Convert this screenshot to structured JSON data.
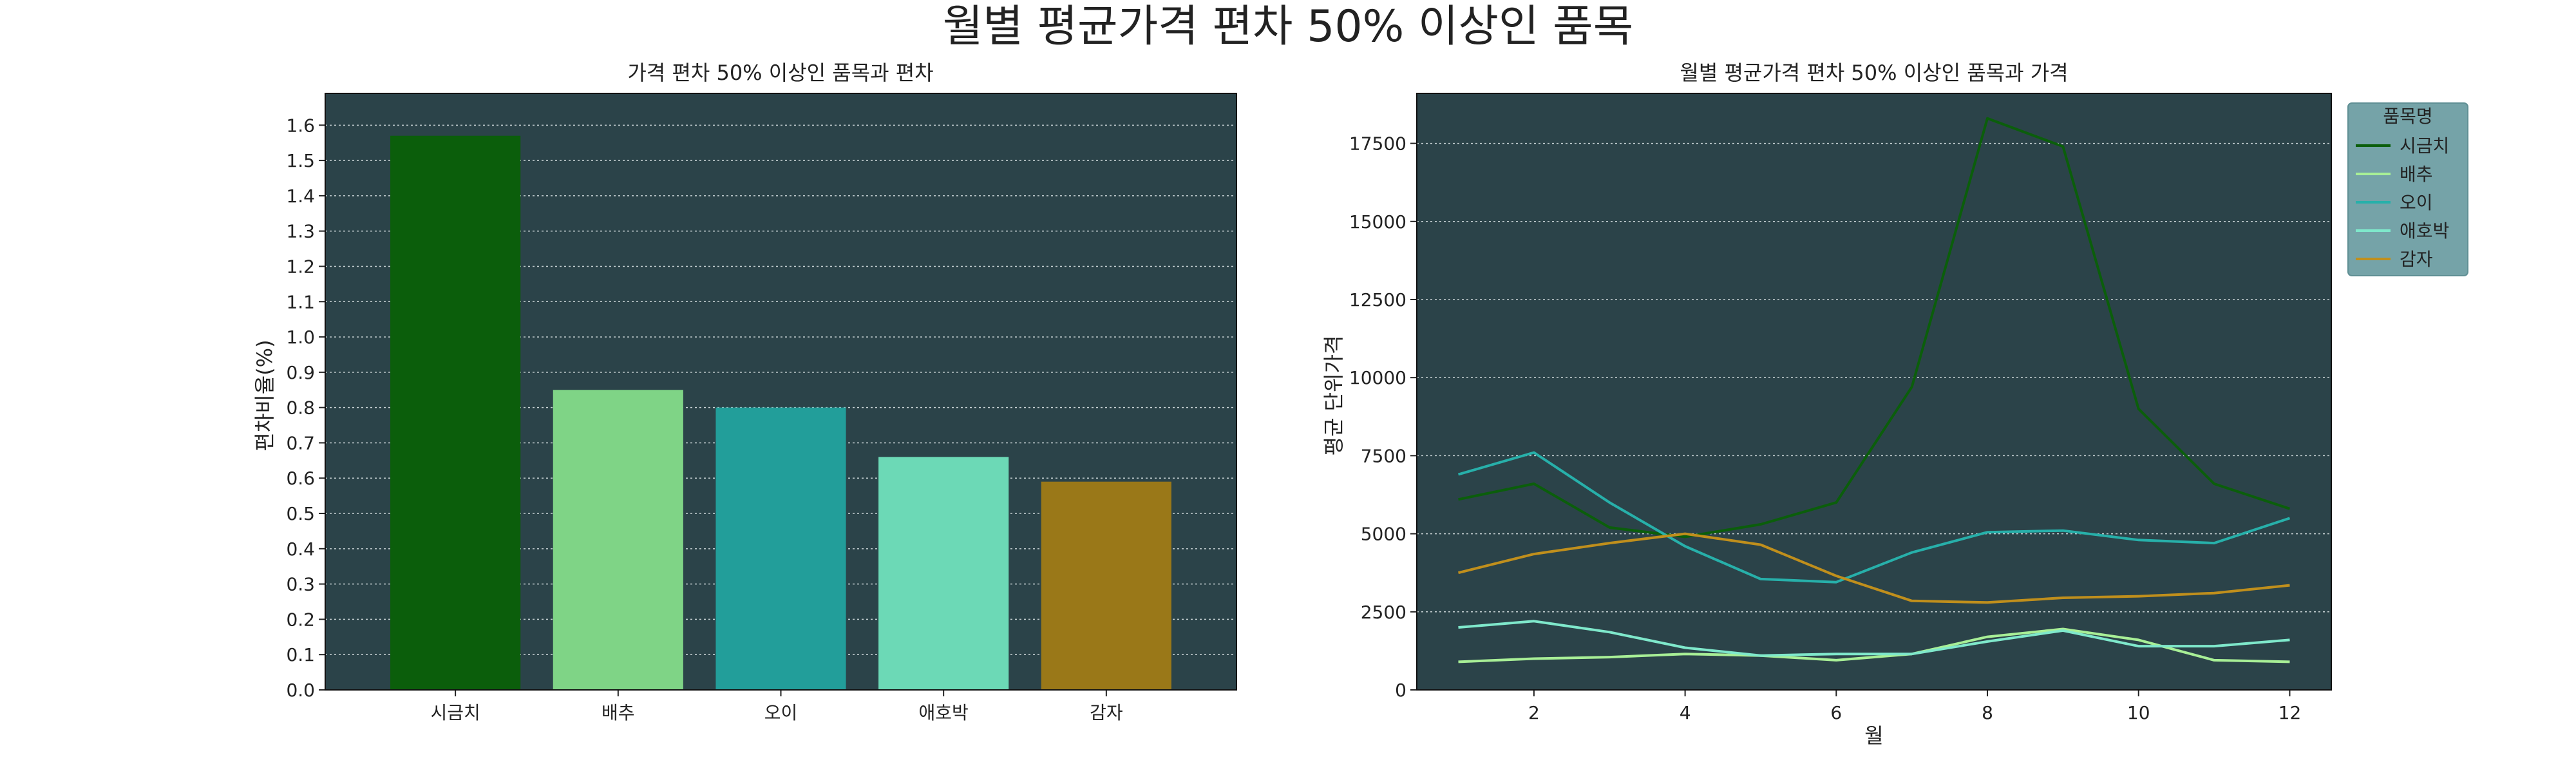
{
  "figure": {
    "suptitle": "월별 평균가격 편차 50% 이상인 품목"
  },
  "chart_data": [
    {
      "type": "bar",
      "title": "가격 편차 50% 이상인 품목과 편차",
      "xlabel": "",
      "ylabel": "편차비율(%)",
      "categories": [
        "시금치",
        "배추",
        "오이",
        "애호박",
        "감자"
      ],
      "values": [
        1.57,
        0.85,
        0.8,
        0.66,
        0.59
      ],
      "colors": [
        "#0b5e0b",
        "#7fd486",
        "#229e9a",
        "#6cd9b6",
        "#9a7818"
      ],
      "ylim": [
        0,
        1.69
      ],
      "yticks": [
        0,
        0.1,
        0.2,
        0.3,
        0.4,
        0.5,
        0.6,
        0.7,
        0.8,
        0.9,
        1.0,
        1.1,
        1.2,
        1.3,
        1.4,
        1.5,
        1.6
      ],
      "ytick_labels": [
        "0.0",
        "0.1",
        "0.2",
        "0.3",
        "0.4",
        "0.5",
        "0.6",
        "0.7",
        "0.8",
        "0.9",
        "1.0",
        "1.1",
        "1.2",
        "1.3",
        "1.4",
        "1.5",
        "1.6"
      ],
      "grid": "horizontal-dotted",
      "background": "#2b4349"
    },
    {
      "type": "line",
      "title": "월별 평균가격 편차 50% 이상인 품목과 가격",
      "xlabel": "월",
      "ylabel": "평균 단위가격",
      "x": [
        1,
        2,
        3,
        4,
        5,
        6,
        7,
        8,
        9,
        10,
        11,
        12
      ],
      "xlim": [
        0.45,
        12.55
      ],
      "xticks": [
        2,
        4,
        6,
        8,
        10,
        12
      ],
      "ylim": [
        0,
        19100
      ],
      "yticks": [
        0,
        2500,
        5000,
        7500,
        10000,
        12500,
        15000,
        17500
      ],
      "grid": "horizontal-dotted",
      "background": "#2b4349",
      "legend": {
        "title": "품목명",
        "placement": "outside-top-right"
      },
      "series": [
        {
          "name": "시금치",
          "color": "#0b5e0b",
          "values": [
            6100,
            6600,
            5200,
            4900,
            5300,
            6000,
            9700,
            18300,
            17400,
            9000,
            6600,
            5800
          ]
        },
        {
          "name": "배추",
          "color": "#a8ef96",
          "values": [
            900,
            1000,
            1050,
            1150,
            1100,
            950,
            1150,
            1700,
            1950,
            1600,
            950,
            900
          ]
        },
        {
          "name": "오이",
          "color": "#27b0aa",
          "values": [
            6900,
            7600,
            6000,
            4600,
            3550,
            3450,
            4400,
            5050,
            5100,
            4800,
            4700,
            5500
          ]
        },
        {
          "name": "애호박",
          "color": "#7fe8cb",
          "values": [
            2000,
            2200,
            1850,
            1350,
            1100,
            1150,
            1150,
            1550,
            1900,
            1400,
            1400,
            1600
          ]
        },
        {
          "name": "감자",
          "color": "#c08f1c",
          "values": [
            3750,
            4350,
            4700,
            5000,
            4650,
            3650,
            2850,
            2800,
            2950,
            3000,
            3100,
            3350
          ]
        }
      ]
    }
  ]
}
